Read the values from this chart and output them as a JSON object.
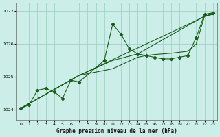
{
  "title": "Graphe pression niveau de la mer (hPa)",
  "background_color": "#cceee8",
  "grid_color": "#99ccbb",
  "line_color": "#1a5c1a",
  "x_values": [
    0,
    1,
    2,
    3,
    4,
    5,
    6,
    7,
    8,
    9,
    10,
    11,
    12,
    13,
    14,
    15,
    16,
    17,
    18,
    19,
    20,
    21,
    22,
    23
  ],
  "series_main": [
    1024.05,
    1024.15,
    1024.6,
    1024.65,
    1024.55,
    1024.35,
    1024.9,
    1024.85,
    null,
    null,
    1025.5,
    1026.6,
    1026.3,
    1025.85,
    1025.7,
    1025.65,
    1025.6,
    1025.55,
    1025.55,
    1025.6,
    1025.65,
    1026.2,
    1026.9,
    1026.95
  ],
  "line2_x": [
    0,
    7,
    11,
    14,
    15,
    16,
    17,
    18,
    19,
    20,
    21,
    22,
    23
  ],
  "line2_y": [
    1024.05,
    1025.05,
    1025.25,
    1025.6,
    1025.65,
    1025.68,
    1025.7,
    1025.72,
    1025.75,
    1025.78,
    1026.0,
    1026.85,
    1026.9
  ],
  "line3_x": [
    0,
    7,
    11,
    14,
    22,
    23
  ],
  "line3_y": [
    1024.05,
    1025.05,
    1025.5,
    1025.7,
    1026.85,
    1026.9
  ],
  "line4_x": [
    0,
    7,
    23
  ],
  "line4_y": [
    1024.05,
    1025.05,
    1026.95
  ],
  "ylim": [
    1023.7,
    1027.25
  ],
  "xlim": [
    -0.5,
    23.5
  ],
  "yticks": [
    1024,
    1025,
    1026,
    1027
  ],
  "xticks": [
    0,
    1,
    2,
    3,
    4,
    5,
    6,
    7,
    8,
    9,
    10,
    11,
    12,
    13,
    14,
    15,
    16,
    17,
    18,
    19,
    20,
    21,
    22,
    23
  ]
}
